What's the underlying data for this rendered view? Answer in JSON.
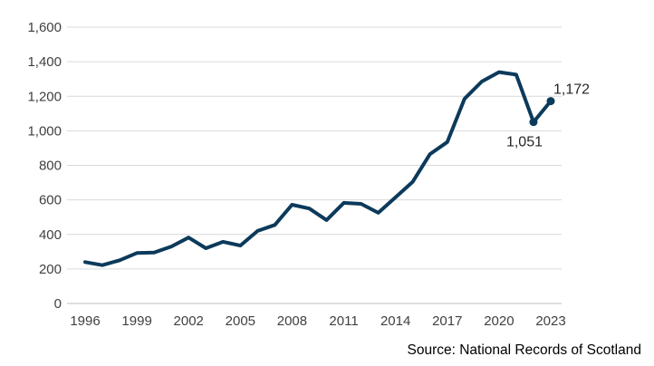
{
  "chart_data": {
    "type": "line",
    "title": "",
    "xlabel": "",
    "ylabel": "",
    "ylim": [
      0,
      1600
    ],
    "yticks": [
      0,
      200,
      400,
      600,
      800,
      1000,
      1200,
      1400,
      1600
    ],
    "ytick_labels": [
      "0",
      "200",
      "400",
      "600",
      "800",
      "1,000",
      "1,200",
      "1,400",
      "1,600"
    ],
    "xlim": [
      1996,
      2023
    ],
    "xticks": [
      1996,
      1999,
      2002,
      2005,
      2008,
      2011,
      2014,
      2017,
      2020,
      2023
    ],
    "xtick_labels": [
      "1996",
      "1999",
      "2002",
      "2005",
      "2008",
      "2011",
      "2014",
      "2017",
      "2020",
      "2023"
    ],
    "grid": "horizontal",
    "line_color": "#0c3a5b",
    "series": [
      {
        "x": [
          1996,
          1997,
          1998,
          1999,
          2000,
          2001,
          2002,
          2003,
          2004,
          2005,
          2006,
          2007,
          2008,
          2009,
          2010,
          2011,
          2012,
          2013,
          2014,
          2015,
          2016,
          2017,
          2018,
          2019,
          2020,
          2021,
          2022,
          2023
        ],
        "values": [
          240,
          222,
          250,
          292,
          295,
          330,
          382,
          320,
          357,
          335,
          420,
          455,
          572,
          550,
          483,
          583,
          577,
          525,
          615,
          705,
          865,
          935,
          1185,
          1285,
          1340,
          1325,
          1051,
          1172
        ]
      }
    ],
    "annotations": [
      {
        "x": 2022,
        "value": 1051,
        "text": "1,051"
      },
      {
        "x": 2023,
        "value": 1172,
        "text": "1,172"
      }
    ]
  },
  "source_text": "Source: National Records of Scotland"
}
